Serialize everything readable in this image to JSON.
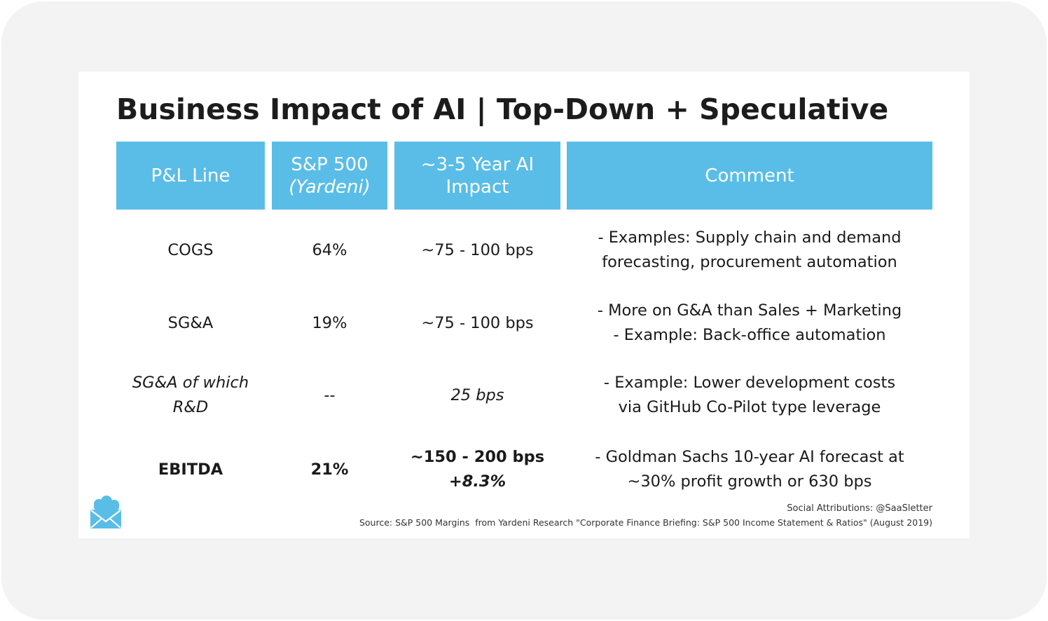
{
  "title": "Business Impact of AI | Top-Down + Speculative",
  "table": {
    "headers": {
      "pl_line": "P&L Line",
      "sp500_line1": "S&P 500",
      "sp500_line2": "(Yardeni)",
      "impact_line1": "~3-5 Year AI",
      "impact_line2": "Impact",
      "comment": "Comment"
    },
    "rows": [
      {
        "pl_line": "COGS",
        "sp500": "64%",
        "impact": "~75 - 100 bps",
        "comment_line1": "- Examples: Supply chain and demand",
        "comment_line2": "forecasting, procurement automation"
      },
      {
        "pl_line": "SG&A",
        "sp500": "19%",
        "impact": "~75 - 100 bps",
        "comment_line1": "- More on G&A than Sales + Marketing",
        "comment_line2": "- Example: Back-office automation"
      },
      {
        "pl_line_line1": "SG&A of which",
        "pl_line_line2": "R&D",
        "sp500": "--",
        "impact": "25 bps",
        "comment_line1": "- Example: Lower development costs",
        "comment_line2": "via GitHub Co-Pilot type leverage"
      },
      {
        "pl_line": "EBITDA",
        "sp500": "21%",
        "impact_line1": "~150 - 200 bps",
        "impact_line2": "+8.3%",
        "comment_line1": "- Goldman Sachs 10-year AI forecast at",
        "comment_line2": "~30% profit growth or 630 bps"
      }
    ]
  },
  "footer": {
    "attribution": "Social Attributions: @SaaSletter",
    "source": "Source: S&P 500 Margins  from Yardeni Research \"Corporate Finance Briefing: S&P 500 Income Statement & Ratios\" (August 2019)"
  },
  "logo": {
    "icon": "envelope-cloud-logo",
    "color": "#59bde8"
  },
  "colors": {
    "header_bg": "#59bde8",
    "header_text": "#ffffff",
    "frame_bg": "#f3f3f3"
  }
}
